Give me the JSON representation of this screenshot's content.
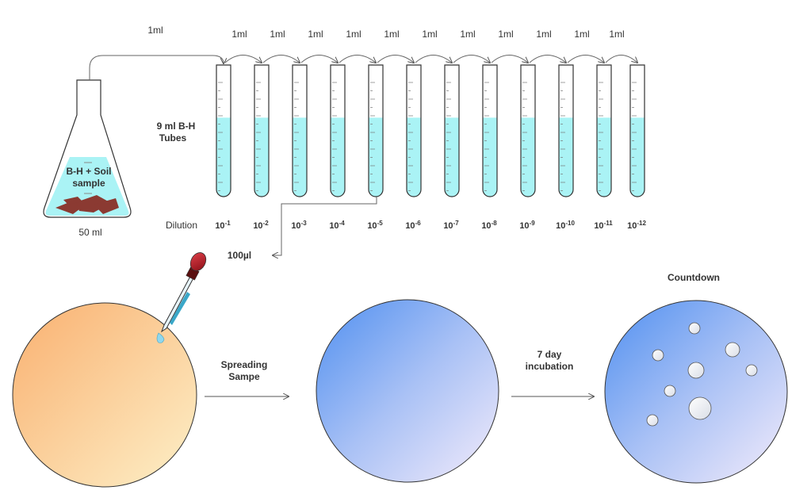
{
  "flask": {
    "transfer_label": "1ml",
    "content_label_line1": "B-H + Soil",
    "content_label_line2": "sample",
    "volume_label": "50 ml"
  },
  "tubes": {
    "label_line1": "9 ml B-H",
    "label_line2": "Tubes",
    "transfer_labels": [
      "1ml",
      "1ml",
      "1ml",
      "1ml",
      "1ml",
      "1ml",
      "1ml",
      "1ml",
      "1ml",
      "1ml",
      "1ml"
    ],
    "liquid_level": 0.6
  },
  "dilution": {
    "label": "Dilution",
    "base": "10",
    "exponents": [
      "-1",
      "-2",
      "-3",
      "-4",
      "-5",
      "-6",
      "-7",
      "-8",
      "-9",
      "-10",
      "-11",
      "-12"
    ]
  },
  "transfer_to_plate": {
    "label": "100µl"
  },
  "steps": {
    "spreading_line1": "Spreading",
    "spreading_line2": "Sampe",
    "incubation_line1": "7 day",
    "incubation_line2": "incubation",
    "countdown": "Countdown"
  },
  "colors": {
    "liquid": "#aaf3f5",
    "soil": "#8b3a32",
    "orange_plate": "#f9b87a",
    "blue_plate": "#5a96f0",
    "pipette_bulb": "#c0202a",
    "outline": "#333333"
  }
}
